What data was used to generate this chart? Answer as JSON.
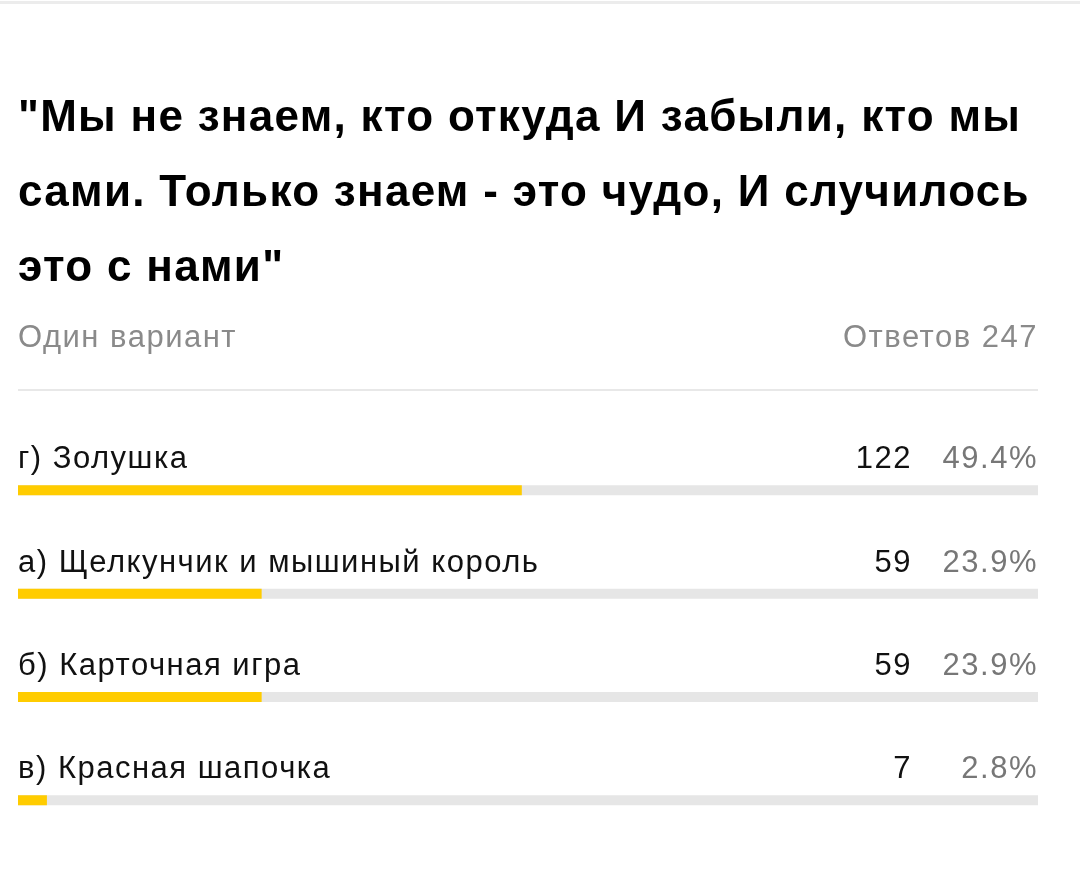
{
  "chart_data": {
    "type": "bar",
    "orientation": "horizontal",
    "title": "\"Мы не знаем, кто откуда И забыли, кто мы сами. Только знаем - это чудо, И случилось это с нами\"",
    "subtitle": "Один вариант",
    "categories": [
      "г) Золушка",
      "а) Щелкунчик и мышиный король",
      "б) Карточная игра",
      "в) Красная шапочка"
    ],
    "values": [
      122,
      59,
      59,
      7
    ],
    "color": "#ffcc00",
    "xlim": [
      0,
      247
    ],
    "data_labels": true,
    "tick_labels": "y",
    "annotations": [
      "Ответов 247",
      "49.4%",
      "23.9%",
      "23.9%",
      "2.8%"
    ]
  }
}
